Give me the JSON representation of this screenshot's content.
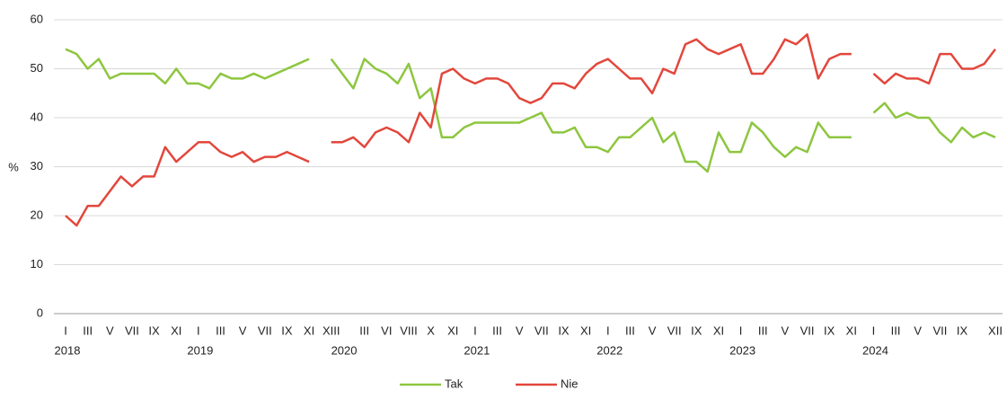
{
  "chart_data": {
    "type": "line",
    "y_label": "%",
    "categories": [
      "I",
      null,
      "III",
      null,
      "V",
      null,
      "VII",
      null,
      "IX",
      null,
      "XI",
      null,
      "I",
      null,
      "III",
      null,
      "V",
      null,
      "VII",
      null,
      "IX",
      null,
      "XI",
      null,
      "XIII",
      null,
      null,
      "III",
      null,
      "VI",
      null,
      "VIII",
      null,
      "X",
      null,
      "XI",
      null,
      "I",
      null,
      "III",
      null,
      "V",
      null,
      "VII",
      null,
      "IX",
      null,
      "XI",
      null,
      "I",
      null,
      "III",
      null,
      "V",
      null,
      "VII",
      null,
      "IX",
      null,
      "XI",
      null,
      "I",
      null,
      "III",
      null,
      "V",
      null,
      "VII",
      null,
      "IX",
      null,
      "XI",
      null,
      "I",
      null,
      "III",
      null,
      "V",
      null,
      "VII",
      null,
      "IX",
      null,
      null,
      "XII"
    ],
    "years": [
      "2018",
      null,
      null,
      null,
      null,
      null,
      null,
      null,
      null,
      null,
      null,
      null,
      "2019",
      null,
      null,
      null,
      null,
      null,
      null,
      null,
      null,
      null,
      null,
      null,
      null,
      "2020",
      null,
      null,
      null,
      null,
      null,
      null,
      null,
      null,
      null,
      null,
      null,
      "2021",
      null,
      null,
      null,
      null,
      null,
      null,
      null,
      null,
      null,
      null,
      null,
      "2022",
      null,
      null,
      null,
      null,
      null,
      null,
      null,
      null,
      null,
      null,
      null,
      "2023",
      null,
      null,
      null,
      null,
      null,
      null,
      null,
      null,
      null,
      null,
      null,
      "2024",
      null,
      null,
      null,
      null,
      null,
      null,
      null,
      null,
      null,
      null,
      null
    ],
    "series": [
      {
        "name": "Tak",
        "color": "#8dc63f",
        "values": [
          54,
          53,
          50,
          52,
          48,
          49,
          49,
          49,
          49,
          47,
          50,
          47,
          47,
          46,
          49,
          48,
          48,
          49,
          48,
          49,
          50,
          51,
          52,
          null,
          52,
          49,
          46,
          52,
          50,
          49,
          47,
          51,
          44,
          46,
          36,
          36,
          38,
          39,
          39,
          39,
          39,
          39,
          40,
          41,
          37,
          37,
          38,
          34,
          34,
          33,
          36,
          36,
          38,
          40,
          35,
          37,
          31,
          31,
          29,
          37,
          33,
          33,
          39,
          37,
          34,
          32,
          34,
          33,
          39,
          36,
          36,
          36,
          null,
          41,
          43,
          40,
          41,
          40,
          40,
          37,
          35,
          38,
          36,
          37,
          36
        ]
      },
      {
        "name": "Nie",
        "color": "#e2473c",
        "values": [
          20,
          18,
          22,
          22,
          25,
          28,
          26,
          28,
          28,
          34,
          31,
          33,
          35,
          35,
          33,
          32,
          33,
          31,
          32,
          32,
          33,
          32,
          31,
          null,
          35,
          35,
          36,
          34,
          37,
          38,
          37,
          35,
          41,
          38,
          49,
          50,
          48,
          47,
          48,
          48,
          47,
          44,
          43,
          44,
          47,
          47,
          46,
          49,
          51,
          52,
          50,
          48,
          48,
          45,
          50,
          49,
          55,
          56,
          54,
          53,
          54,
          55,
          49,
          49,
          52,
          56,
          55,
          57,
          48,
          52,
          53,
          53,
          null,
          49,
          47,
          49,
          48,
          48,
          47,
          53,
          53,
          50,
          50,
          51,
          54
        ]
      }
    ],
    "ylim": [
      0,
      60
    ],
    "yticks": [
      0,
      10,
      20,
      30,
      40,
      50,
      60
    ],
    "grid": true,
    "legend": "bottom"
  }
}
